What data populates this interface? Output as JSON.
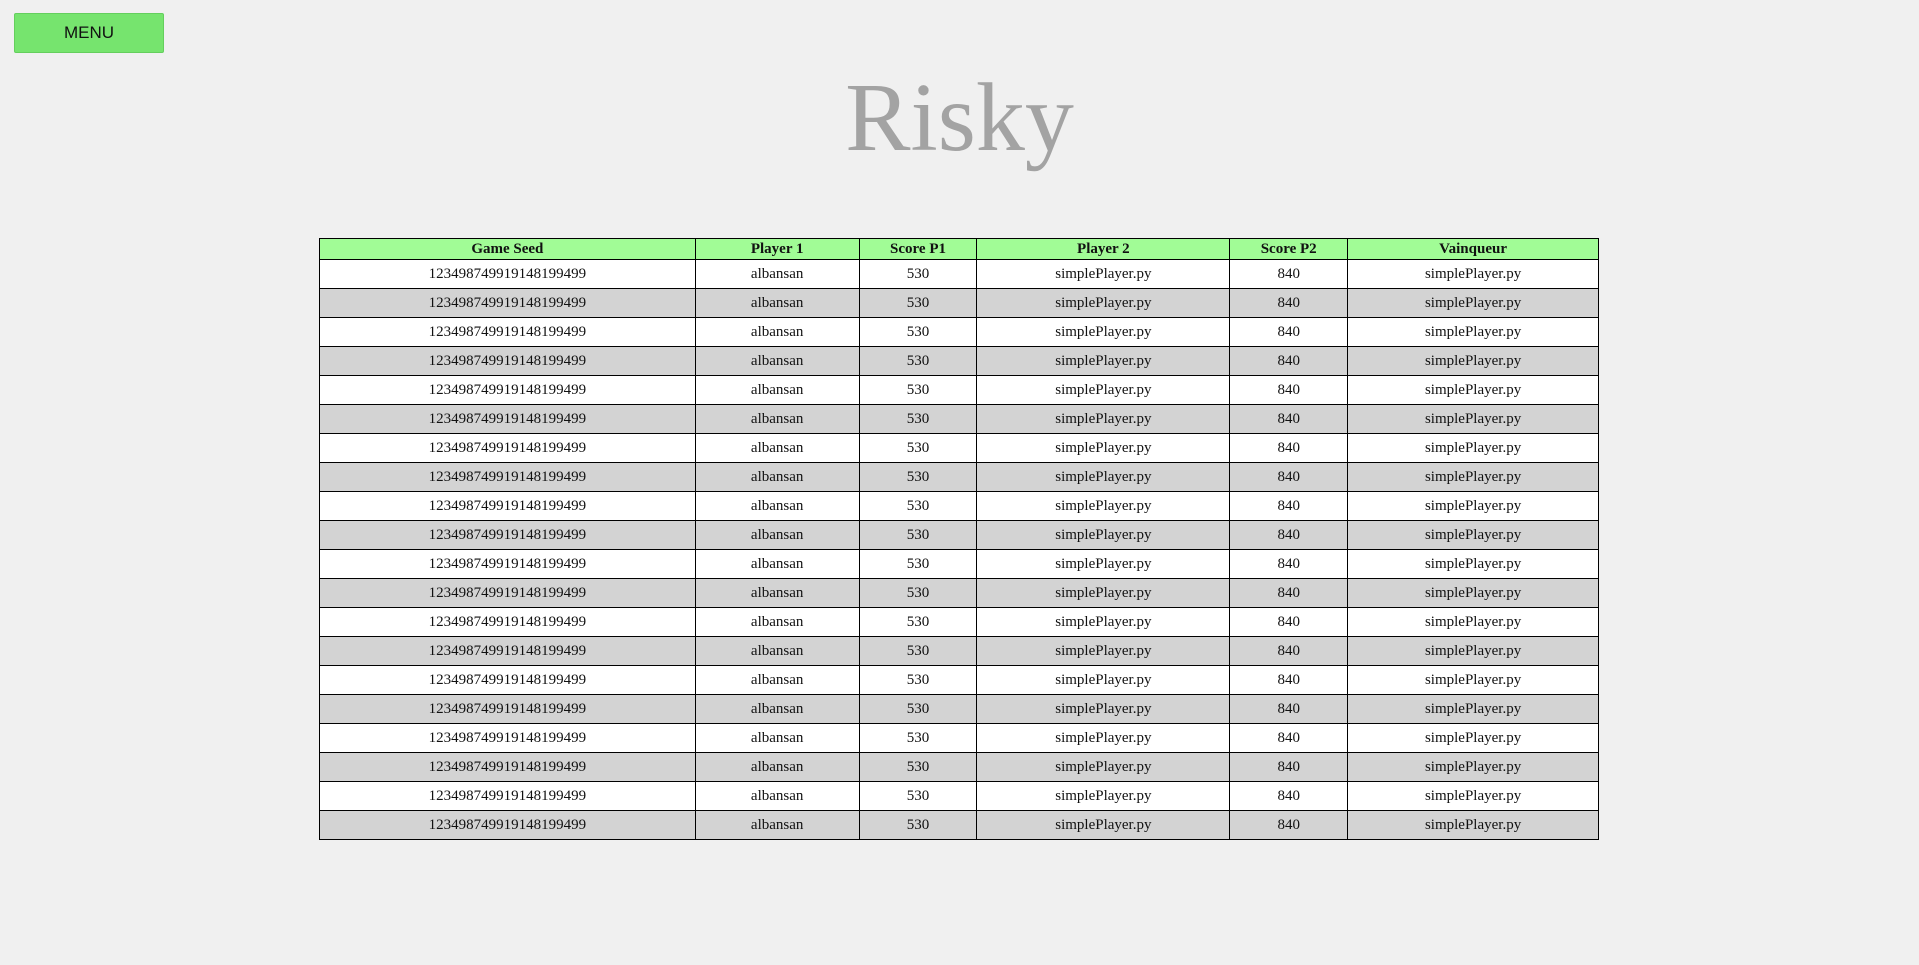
{
  "menu": {
    "label": "MENU"
  },
  "title": "Risky",
  "table": {
    "headers": [
      "Game Seed",
      "Player 1",
      "Score P1",
      "Player 2",
      "Score P2",
      "Vainqueur"
    ],
    "rows": [
      [
        "12349874991914819949​9",
        "albansan",
        "530",
        "simplePlayer.py",
        "840",
        "simplePlayer.py"
      ]
    ]
  },
  "colors": {
    "menu_button": "#76e46e",
    "header_row": "#a1fc96",
    "row_even": "#ffffff",
    "row_odd": "#d3d3d3",
    "title": "#a3a3a3",
    "background": "#f0f0f0"
  }
}
